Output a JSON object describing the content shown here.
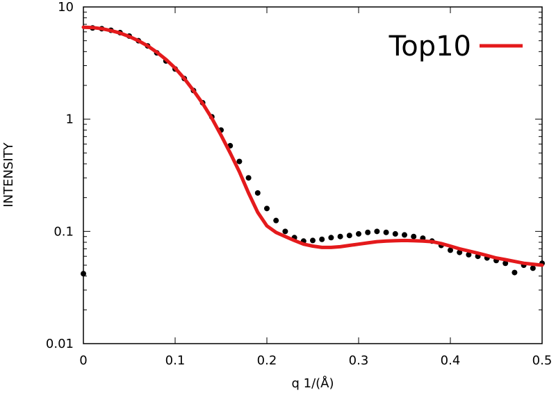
{
  "chart_data": {
    "type": "scatter",
    "title": "",
    "xlabel": "q 1/(Å)",
    "ylabel": "INTENSITY",
    "xlim": [
      0,
      0.5
    ],
    "ylim": [
      0.01,
      10
    ],
    "yscale": "log",
    "grid": false,
    "legend_position": "top-right",
    "x_ticks": [
      {
        "value": 0,
        "label": "0"
      },
      {
        "value": 0.1,
        "label": "0.1"
      },
      {
        "value": 0.2,
        "label": "0.2"
      },
      {
        "value": 0.3,
        "label": "0.3"
      },
      {
        "value": 0.4,
        "label": "0.4"
      },
      {
        "value": 0.5,
        "label": "0.5"
      }
    ],
    "y_ticks": [
      {
        "value": 0.01,
        "label": "0.01"
      },
      {
        "value": 0.1,
        "label": "0.1"
      },
      {
        "value": 1,
        "label": "1"
      },
      {
        "value": 10,
        "label": "10"
      }
    ],
    "series": [
      {
        "style": "points",
        "color": "#000000",
        "x": [
          0.0,
          0.01,
          0.02,
          0.03,
          0.04,
          0.05,
          0.06,
          0.07,
          0.08,
          0.09,
          0.1,
          0.11,
          0.12,
          0.13,
          0.14,
          0.15,
          0.16,
          0.17,
          0.18,
          0.19,
          0.2,
          0.21,
          0.22,
          0.23,
          0.24,
          0.25,
          0.26,
          0.27,
          0.28,
          0.29,
          0.3,
          0.31,
          0.32,
          0.33,
          0.34,
          0.35,
          0.36,
          0.37,
          0.38,
          0.39,
          0.4,
          0.41,
          0.42,
          0.43,
          0.44,
          0.45,
          0.46,
          0.47,
          0.48,
          0.49,
          0.5
        ],
        "y": [
          0.042,
          6.5,
          6.4,
          6.2,
          5.9,
          5.5,
          5.0,
          4.5,
          3.9,
          3.3,
          2.8,
          2.3,
          1.8,
          1.4,
          1.05,
          0.8,
          0.58,
          0.42,
          0.3,
          0.22,
          0.16,
          0.125,
          0.1,
          0.088,
          0.082,
          0.083,
          0.085,
          0.088,
          0.09,
          0.092,
          0.095,
          0.098,
          0.1,
          0.098,
          0.095,
          0.093,
          0.09,
          0.087,
          0.082,
          0.075,
          0.068,
          0.065,
          0.062,
          0.06,
          0.058,
          0.055,
          0.052,
          0.043,
          0.05,
          0.047,
          0.052
        ]
      },
      {
        "name": "Top10",
        "style": "line",
        "color": "#e41a1c",
        "x": [
          0.0,
          0.01,
          0.02,
          0.03,
          0.04,
          0.05,
          0.06,
          0.07,
          0.08,
          0.09,
          0.1,
          0.11,
          0.12,
          0.13,
          0.14,
          0.15,
          0.16,
          0.17,
          0.18,
          0.19,
          0.2,
          0.21,
          0.22,
          0.23,
          0.24,
          0.25,
          0.26,
          0.27,
          0.28,
          0.29,
          0.3,
          0.31,
          0.32,
          0.33,
          0.34,
          0.35,
          0.36,
          0.37,
          0.38,
          0.39,
          0.4,
          0.41,
          0.42,
          0.43,
          0.44,
          0.45,
          0.46,
          0.47,
          0.48,
          0.49,
          0.5
        ],
        "y": [
          6.6,
          6.55,
          6.4,
          6.15,
          5.85,
          5.45,
          5.0,
          4.5,
          3.95,
          3.4,
          2.85,
          2.3,
          1.8,
          1.38,
          1.02,
          0.72,
          0.5,
          0.34,
          0.22,
          0.148,
          0.112,
          0.098,
          0.09,
          0.083,
          0.077,
          0.074,
          0.072,
          0.072,
          0.073,
          0.075,
          0.077,
          0.079,
          0.081,
          0.082,
          0.0825,
          0.083,
          0.0825,
          0.082,
          0.081,
          0.078,
          0.074,
          0.07,
          0.067,
          0.064,
          0.061,
          0.058,
          0.056,
          0.054,
          0.052,
          0.051,
          0.05
        ]
      }
    ]
  }
}
